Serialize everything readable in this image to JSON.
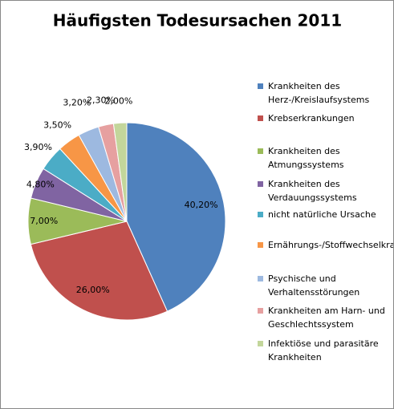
{
  "chart_data": {
    "type": "pie",
    "title": "Häufigsten Todesursachen 2011",
    "categories": [
      "Krankheiten des Herz-/Kreislaufsystems",
      "Krebserkrankungen",
      "Krankheiten des Atmungssystems",
      "Krankheiten des Verdauungssystems",
      "nicht natürliche Ursache",
      "Ernährungs-/Stoffwechselkrankheiten",
      "Psychische und Verhaltensstörungen",
      "Krankheiten am Harn- und Geschlechtssystem",
      "Infektiöse und parasitäre Krankheiten"
    ],
    "values": [
      40.2,
      26.0,
      7.0,
      4.8,
      3.9,
      3.5,
      3.2,
      2.3,
      2.0
    ],
    "value_labels": [
      "40,20%",
      "26,00%",
      "7,00%",
      "4,80%",
      "3,90%",
      "3,50%",
      "3,20%",
      "2,30%",
      "2,00%"
    ],
    "colors": [
      "#4f81bd",
      "#c0504d",
      "#9bbb59",
      "#8064a2",
      "#4bacc6",
      "#f79646",
      "#9db9e0",
      "#e6a0a0",
      "#c3d69b"
    ],
    "legend": "right"
  }
}
